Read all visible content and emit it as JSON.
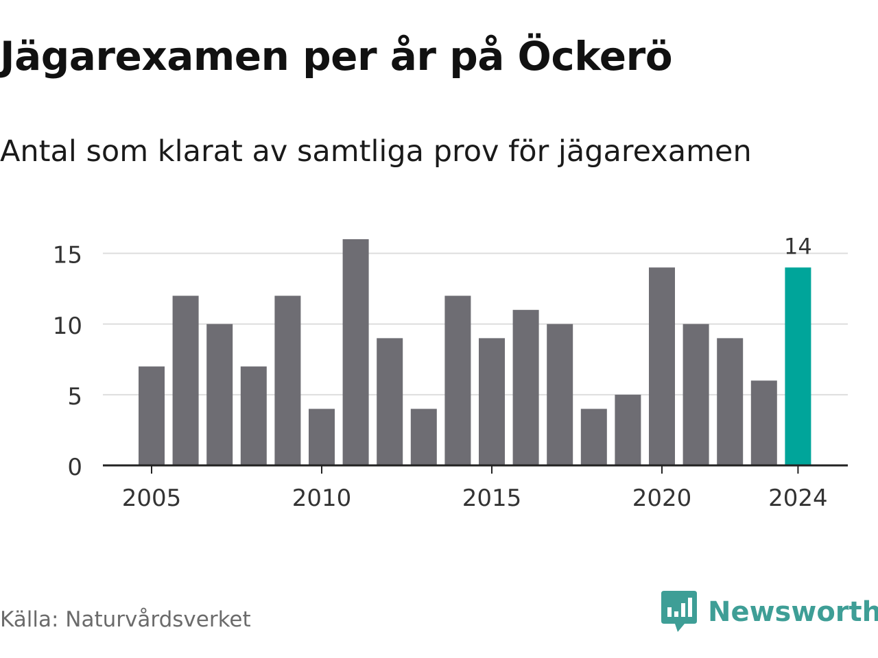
{
  "title": "Jägarexamen per år på Öckerö",
  "subtitle": "Antal som klarat av samtliga prov för jägarexamen",
  "source": "Källa: Naturvårdsverket",
  "brand": {
    "name": "Newsworthy",
    "icon": "newsworthy-logo-icon"
  },
  "colors": {
    "bar": "#6e6d73",
    "highlight": "#00a59a",
    "grid": "#dddddd",
    "axis": "#222222",
    "text": "#333333"
  },
  "chart_data": {
    "type": "bar",
    "categories": [
      2005,
      2006,
      2007,
      2008,
      2009,
      2010,
      2011,
      2012,
      2013,
      2014,
      2015,
      2016,
      2017,
      2018,
      2019,
      2020,
      2021,
      2022,
      2023,
      2024
    ],
    "values": [
      7,
      12,
      10,
      7,
      12,
      4,
      16,
      9,
      4,
      12,
      9,
      11,
      10,
      4,
      5,
      14,
      10,
      9,
      6,
      14
    ],
    "xticks": [
      "2005",
      "2010",
      "2015",
      "2020",
      "2024"
    ],
    "yticks": [
      "0",
      "5",
      "10",
      "15"
    ],
    "ylim": [
      0,
      16
    ],
    "highlight": {
      "category": 2024,
      "label": "14"
    },
    "grid": true
  }
}
